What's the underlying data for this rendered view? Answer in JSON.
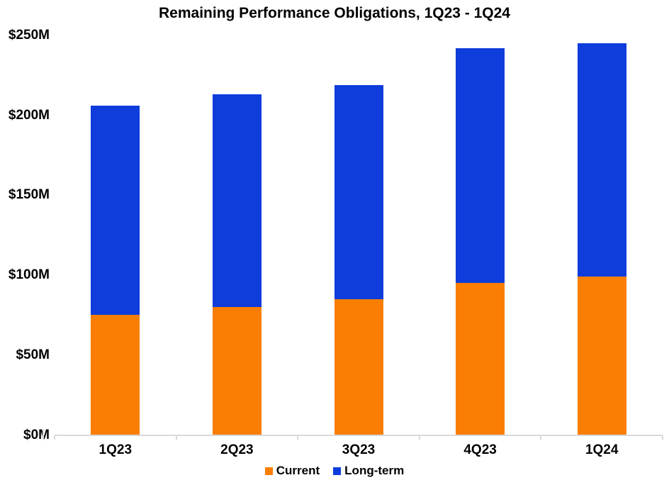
{
  "chart_data": {
    "type": "bar",
    "stacked": true,
    "title": "Remaining Performance Obligations, 1Q23 - 1Q24",
    "categories": [
      "1Q23",
      "2Q23",
      "3Q23",
      "4Q23",
      "1Q24"
    ],
    "series": [
      {
        "name": "Current",
        "color": "#FB7E04",
        "values": [
          75,
          80,
          85,
          95,
          99
        ]
      },
      {
        "name": "Long-term",
        "color": "#0E3DDC",
        "values": [
          131,
          133,
          134,
          147,
          146
        ]
      }
    ],
    "totals": [
      206,
      213,
      219,
      242,
      245
    ],
    "xlabel": "",
    "ylabel": "",
    "y_axis": {
      "min": 0,
      "max": 250,
      "tick_labels": [
        "$250M",
        "$200M",
        "$150M",
        "$100M",
        "$50M",
        "$0M"
      ],
      "tick_values": [
        250,
        200,
        150,
        100,
        50,
        0
      ]
    },
    "grid": false,
    "legend_position": "bottom",
    "colors": {
      "axis_line": "#D9D9D9",
      "text": "#000000",
      "background": "#FFFFFF"
    }
  }
}
